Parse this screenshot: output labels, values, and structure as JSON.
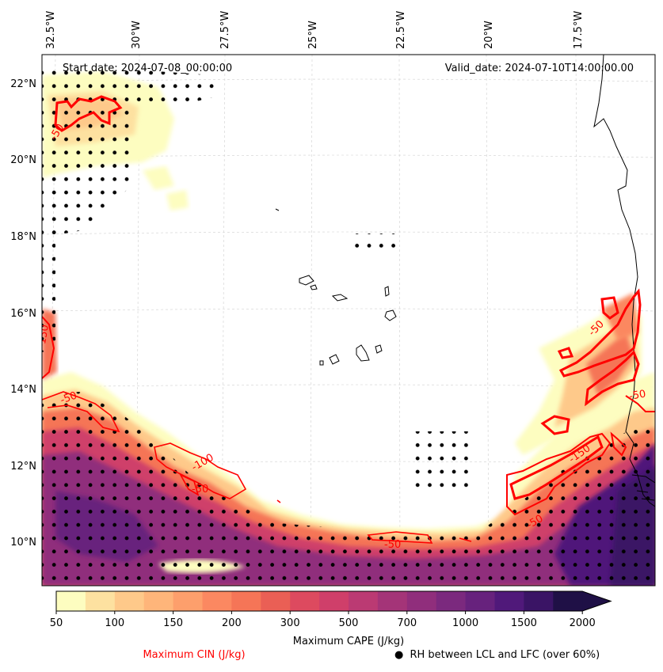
{
  "map": {
    "start_date": "Start date: 2024-07-08_00:00:00",
    "valid_date": "Valid_date: 2024-07-10T14:00:00.00",
    "lon_labels": [
      "32.5°W",
      "30°W",
      "27.5°W",
      "25°W",
      "22.5°W",
      "20°W",
      "17.5°W"
    ],
    "lat_labels": [
      "22°N",
      "20°N",
      "18°N",
      "16°N",
      "14°N",
      "12°N",
      "10°N"
    ],
    "cin_labels": [
      "-50",
      "-150",
      "-100",
      "-50",
      "-50",
      "-150",
      "-50",
      "-50",
      "-50",
      "-50"
    ]
  },
  "colorbar": {
    "ticks": [
      "50",
      "100",
      "150",
      "200",
      "300",
      "500",
      "700",
      "1000",
      "1500",
      "2000"
    ],
    "colors": [
      "#fdfdc0",
      "#fde1a0",
      "#fec98a",
      "#feb57a",
      "#fd9f6c",
      "#fb8861",
      "#f57557",
      "#ea5f55",
      "#dd4a5f",
      "#cf3f6a",
      "#bb3a73",
      "#a43478",
      "#902e7c",
      "#7b297e",
      "#67227d",
      "#50197a",
      "#3a1465",
      "#1f1046"
    ],
    "label": "Maximum CAPE (J/kg)"
  },
  "legend": {
    "cin_label": "Maximum CIN (J/kg)",
    "cin_color": "#ff0000",
    "rh_label": "RH between LCL and LFC (over 60%)",
    "rh_symbol": "●"
  }
}
